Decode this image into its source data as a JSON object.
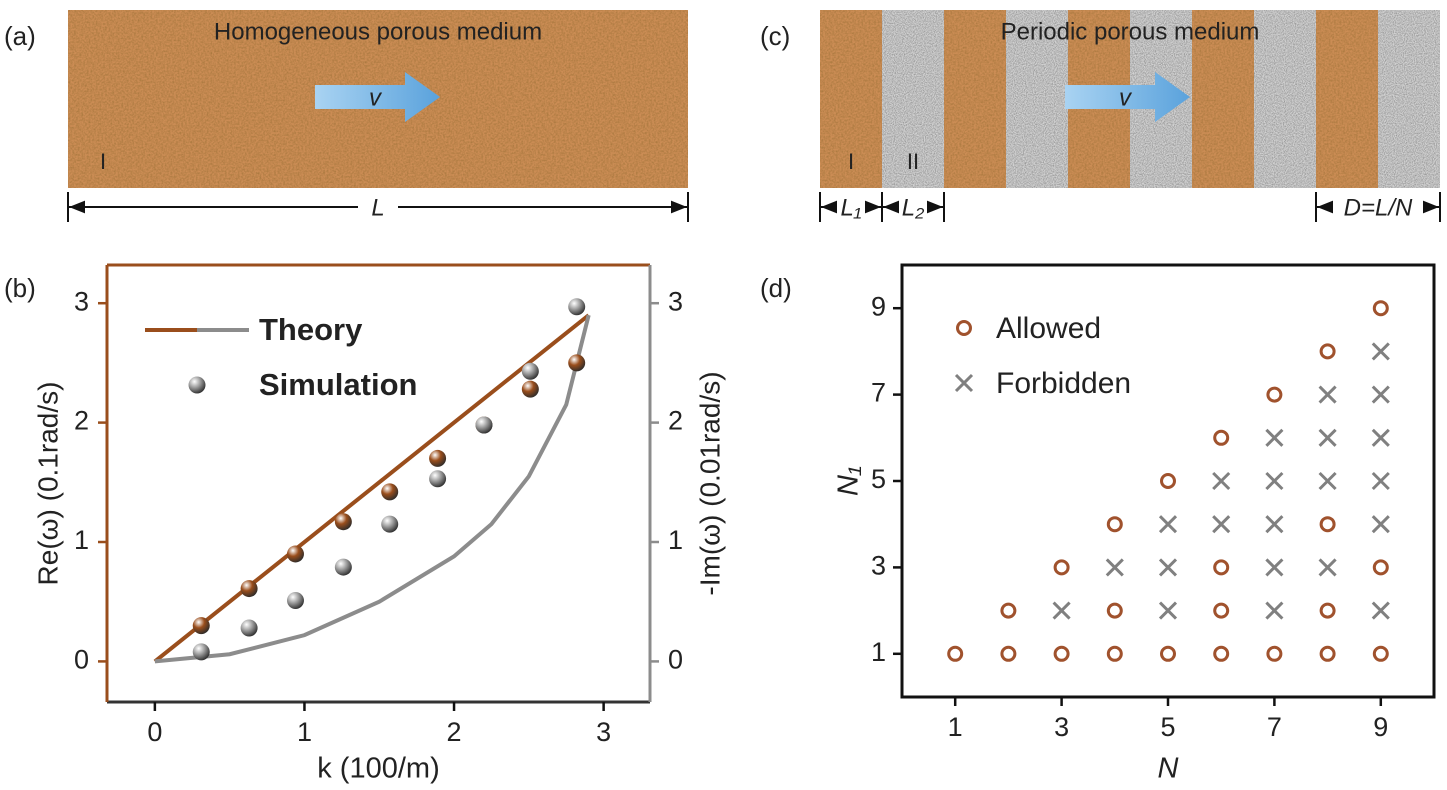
{
  "diagrams": [
    {
      "label": "(a)",
      "title": "Homogeneous porous medium",
      "velocity": "v",
      "layers": [
        "I"
      ],
      "length": "L"
    },
    {
      "label": "(c)",
      "title": "Periodic porous medium",
      "velocity": "v",
      "layers": [
        "I",
        "II"
      ],
      "lengths": [
        "L₁",
        "L₂",
        "D=L/N"
      ]
    }
  ],
  "chart_data": [
    {
      "type": "line",
      "panel_label": "(b)",
      "xlabel": "k (100/m)",
      "ylabel": "Re(ω) (0.1rad/s)",
      "y2label": "-Im(ω) (0.01rad/s)",
      "xlim": [
        -0.32,
        3.31
      ],
      "ylim": [
        -0.34,
        3.32
      ],
      "y2lim": [
        -0.34,
        3.32
      ],
      "xticks": [
        0,
        1,
        2,
        3
      ],
      "yticks": [
        0,
        1,
        2,
        3
      ],
      "y2ticks": [
        0,
        1,
        2,
        3
      ],
      "legend": [
        "Theory",
        "Simulation"
      ],
      "legend_position": "upper left",
      "series": [
        {
          "style": "line",
          "color": "#9a4e1c",
          "x": [
            0,
            0.5,
            1,
            1.5,
            2,
            2.5,
            2.9
          ],
          "values": [
            0,
            0.5,
            1,
            1.5,
            2,
            2.5,
            2.9
          ]
        },
        {
          "style": "line",
          "axis": "y2",
          "color": "#8c8c8c",
          "x": [
            0,
            0.5,
            1,
            1.5,
            2,
            2.25,
            2.5,
            2.75,
            2.9
          ],
          "values": [
            0,
            0.06,
            0.22,
            0.5,
            0.88,
            1.15,
            1.55,
            2.15,
            2.9
          ]
        },
        {
          "style": "markers",
          "color": "#9a4e1c",
          "x": [
            0.31,
            0.63,
            0.94,
            1.26,
            1.57,
            1.89,
            2.2,
            2.51,
            2.82
          ],
          "values": [
            0.3,
            0.61,
            0.9,
            1.17,
            1.42,
            1.7,
            1.98,
            2.28,
            2.5
          ]
        },
        {
          "style": "markers",
          "axis": "y2",
          "color": "#a0a0a0",
          "x": [
            0.31,
            0.63,
            0.94,
            1.26,
            1.57,
            1.89,
            2.2,
            2.51,
            2.82
          ],
          "values": [
            0.08,
            0.28,
            0.51,
            0.79,
            1.15,
            1.53,
            1.98,
            2.43,
            2.97
          ]
        }
      ]
    },
    {
      "type": "scatter",
      "panel_label": "(d)",
      "xlabel": "N",
      "ylabel": "N₁",
      "xlim": [
        0,
        10
      ],
      "ylim": [
        0,
        10
      ],
      "xticks": [
        1,
        3,
        5,
        7,
        9
      ],
      "yticks": [
        1,
        3,
        5,
        7,
        9
      ],
      "legend_position": "upper left",
      "series": [
        {
          "name": "Allowed",
          "marker": "o",
          "color": "#a0522d",
          "x": [
            1,
            2,
            2,
            3,
            3,
            4,
            4,
            4,
            5,
            5,
            6,
            6,
            6,
            6,
            7,
            7,
            8,
            8,
            8,
            8,
            9,
            9,
            9
          ],
          "values": [
            1,
            1,
            2,
            1,
            3,
            1,
            2,
            4,
            1,
            5,
            1,
            2,
            3,
            6,
            1,
            7,
            1,
            2,
            4,
            8,
            1,
            3,
            9
          ]
        },
        {
          "name": "Forbidden",
          "marker": "x",
          "color": "#808080",
          "x": [
            3,
            4,
            5,
            5,
            5,
            6,
            6,
            7,
            7,
            7,
            7,
            7,
            8,
            8,
            8,
            8,
            9,
            9,
            9,
            9,
            9,
            9
          ],
          "values": [
            2,
            3,
            2,
            3,
            4,
            4,
            5,
            2,
            3,
            4,
            5,
            6,
            3,
            5,
            6,
            7,
            2,
            4,
            5,
            6,
            7,
            8
          ]
        }
      ]
    }
  ]
}
